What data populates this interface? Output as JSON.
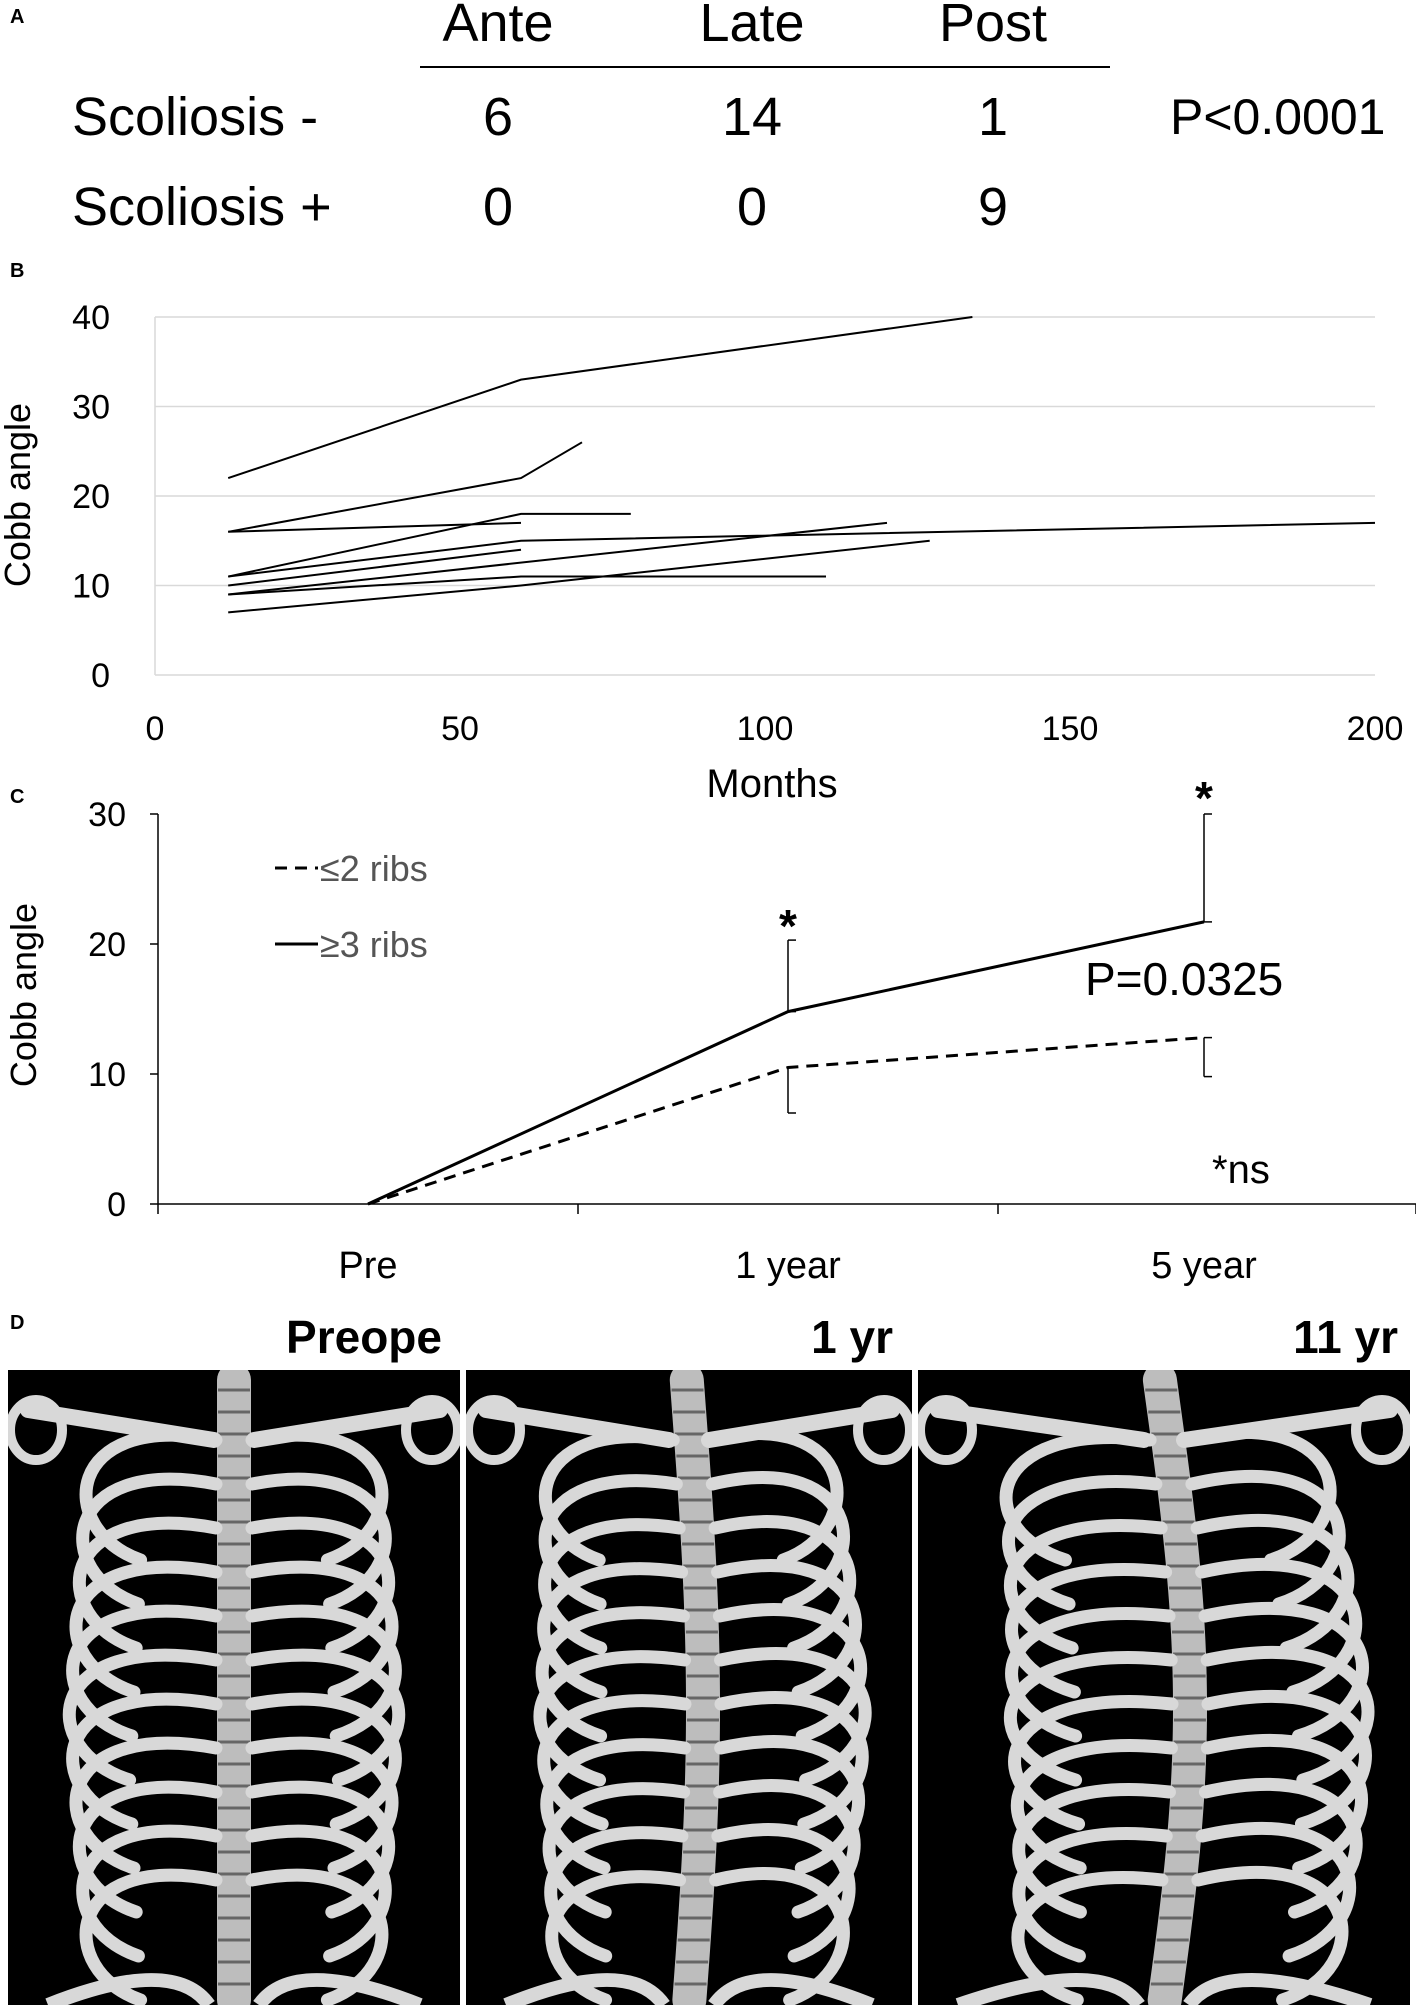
{
  "panel_labels": {
    "a": "A",
    "b": "B",
    "c": "C",
    "d": "D"
  },
  "table": {
    "columns": [
      "Ante",
      "Late",
      "Post"
    ],
    "rows": [
      {
        "label": "Scoliosis -",
        "values": [
          "6",
          "14",
          "1"
        ]
      },
      {
        "label": "Scoliosis +",
        "values": [
          "0",
          "0",
          "9"
        ]
      }
    ],
    "p_value": "P<0.0001"
  },
  "chart_data": [
    {
      "type": "line",
      "xlabel": "Months",
      "ylabel": "Cobb angle",
      "xlim": [
        0,
        200
      ],
      "ylim": [
        0,
        40
      ],
      "x_ticks": [
        "0",
        "50",
        "100",
        "150",
        "200"
      ],
      "y_ticks": [
        "0",
        "10",
        "20",
        "30",
        "40"
      ],
      "grid": "horizontal",
      "series": [
        {
          "points": [
            [
              12,
              22
            ],
            [
              60,
              33
            ],
            [
              134,
              40
            ]
          ]
        },
        {
          "points": [
            [
              12,
              16
            ],
            [
              60,
              22
            ],
            [
              70,
              26
            ]
          ]
        },
        {
          "points": [
            [
              12,
              16
            ],
            [
              60,
              17
            ]
          ]
        },
        {
          "points": [
            [
              12,
              11
            ],
            [
              60,
              18
            ],
            [
              78,
              18
            ]
          ]
        },
        {
          "points": [
            [
              12,
              11
            ],
            [
              60,
              15
            ],
            [
              200,
              17
            ]
          ]
        },
        {
          "points": [
            [
              12,
              10
            ],
            [
              60,
              14
            ]
          ]
        },
        {
          "points": [
            [
              12,
              9
            ],
            [
              60,
              11
            ],
            [
              110,
              11
            ]
          ]
        },
        {
          "points": [
            [
              12,
              9
            ],
            [
              120,
              17
            ]
          ]
        },
        {
          "points": [
            [
              12,
              7
            ],
            [
              60,
              10
            ],
            [
              127,
              15
            ]
          ]
        }
      ]
    },
    {
      "type": "line",
      "categories": [
        "Pre",
        "1 year",
        "5 year"
      ],
      "ylabel": "Cobb angle",
      "ylim": [
        0,
        30
      ],
      "y_ticks": [
        "0",
        "10",
        "20",
        "30"
      ],
      "legend_position": "top-left",
      "series": [
        {
          "name": "≤2 ribs",
          "style": "dashed",
          "values": [
            0,
            10.5,
            12.8
          ],
          "error_minus": [
            0,
            3.5,
            3.0
          ]
        },
        {
          "name": "≥3 ribs",
          "style": "solid",
          "values": [
            0,
            14.8,
            21.7
          ],
          "error_plus": [
            0,
            5.5,
            8.3
          ]
        }
      ],
      "annotations": {
        "star_1": "*",
        "star_2": "*",
        "p_value": "P=0.0325",
        "ns": "*ns"
      }
    }
  ],
  "images": {
    "titles": [
      "Preope",
      "1 yr",
      "11 yr"
    ]
  }
}
